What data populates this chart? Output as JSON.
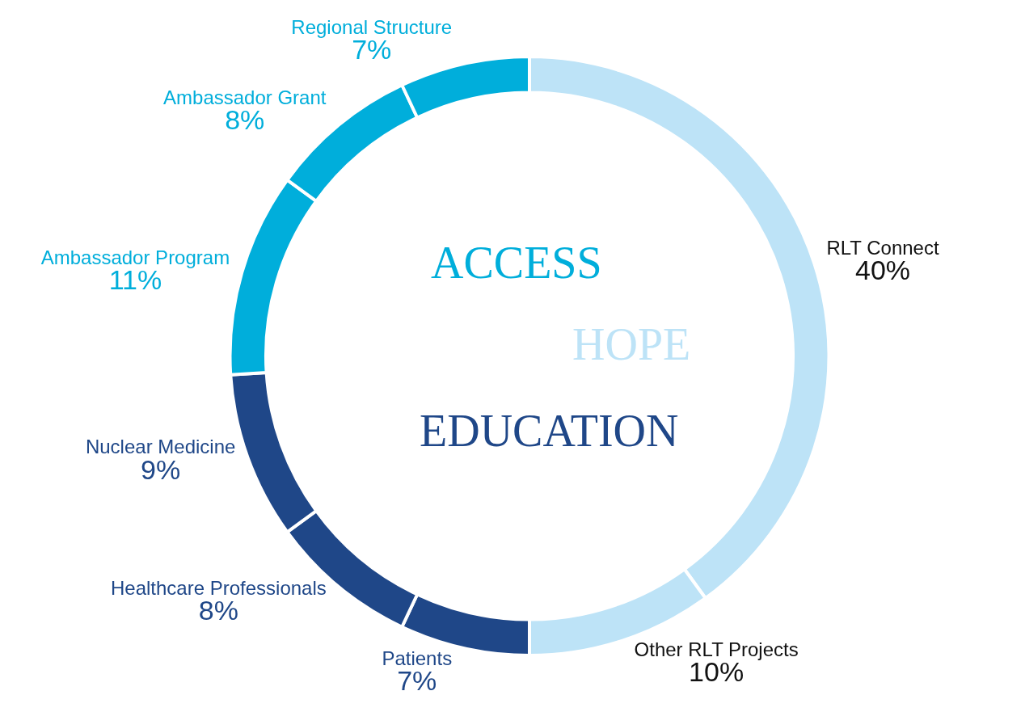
{
  "chart_data": {
    "type": "donut",
    "categories": [
      "RLT Connect",
      "Other RLT Projects",
      "Patients",
      "Healthcare Professionals",
      "Nuclear Medicine",
      "Ambassador Program",
      "Ambassador Grant",
      "Regional Structure"
    ],
    "values": [
      40,
      10,
      7,
      8,
      9,
      11,
      8,
      7
    ],
    "value_labels": [
      "40%",
      "10%",
      "7%",
      "8%",
      "9%",
      "11%",
      "8%",
      "7%"
    ],
    "colors": [
      "#bde3f7",
      "#bde3f7",
      "#1f4788",
      "#1f4788",
      "#1f4788",
      "#00aedb",
      "#00aedb",
      "#00aedb"
    ],
    "annotations": [
      "HOPE",
      "EDUCATION",
      "ACCESS"
    ],
    "legend": false
  }
}
